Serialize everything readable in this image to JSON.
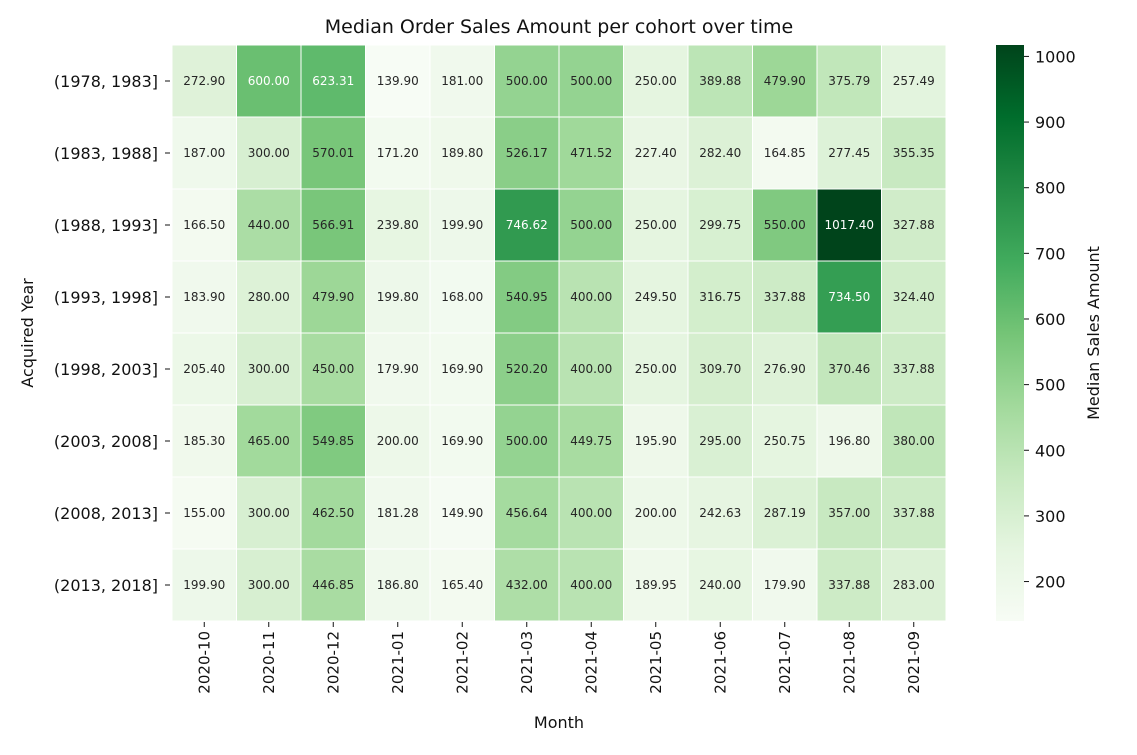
{
  "chart_data": {
    "type": "heatmap",
    "title": "Median Order Sales Amount per cohort over time",
    "xlabel": "Month",
    "ylabel": "Acquired Year",
    "colorbar_label": "Median Sales Amount",
    "colormap": "Greens",
    "colorbar_range": [
      139.9,
      1017.4
    ],
    "colorbar_ticks": [
      200,
      300,
      400,
      500,
      600,
      700,
      800,
      900,
      1000
    ],
    "x": [
      "2020-10",
      "2020-11",
      "2020-12",
      "2021-01",
      "2021-02",
      "2021-03",
      "2021-04",
      "2021-05",
      "2021-06",
      "2021-07",
      "2021-08",
      "2021-09"
    ],
    "y": [
      "(1978, 1983]",
      "(1983, 1988]",
      "(1988, 1993]",
      "(1993, 1998]",
      "(1998, 2003]",
      "(2003, 2008]",
      "(2008, 2013]",
      "(2013, 2018]"
    ],
    "values": [
      [
        272.9,
        600.0,
        623.31,
        139.9,
        181.0,
        500.0,
        500.0,
        250.0,
        389.88,
        479.9,
        375.79,
        257.49
      ],
      [
        187.0,
        300.0,
        570.01,
        171.2,
        189.8,
        526.17,
        471.52,
        227.4,
        282.4,
        164.85,
        277.45,
        355.35
      ],
      [
        166.5,
        440.0,
        566.91,
        239.8,
        199.9,
        746.62,
        500.0,
        250.0,
        299.75,
        550.0,
        1017.4,
        327.88
      ],
      [
        183.9,
        280.0,
        479.9,
        199.8,
        168.0,
        540.95,
        400.0,
        249.5,
        316.75,
        337.88,
        734.5,
        324.4
      ],
      [
        205.4,
        300.0,
        450.0,
        179.9,
        169.9,
        520.2,
        400.0,
        250.0,
        309.7,
        276.9,
        370.46,
        337.88
      ],
      [
        185.3,
        465.0,
        549.85,
        200.0,
        169.9,
        500.0,
        449.75,
        195.9,
        295.0,
        250.75,
        196.8,
        380.0
      ],
      [
        155.0,
        300.0,
        462.5,
        181.28,
        149.9,
        456.64,
        400.0,
        200.0,
        242.63,
        287.19,
        357.0,
        337.88
      ],
      [
        199.9,
        300.0,
        446.85,
        186.8,
        165.4,
        432.0,
        400.0,
        189.95,
        240.0,
        179.9,
        337.88,
        283.0
      ]
    ],
    "grid": false,
    "legend": "colorbar-right"
  }
}
